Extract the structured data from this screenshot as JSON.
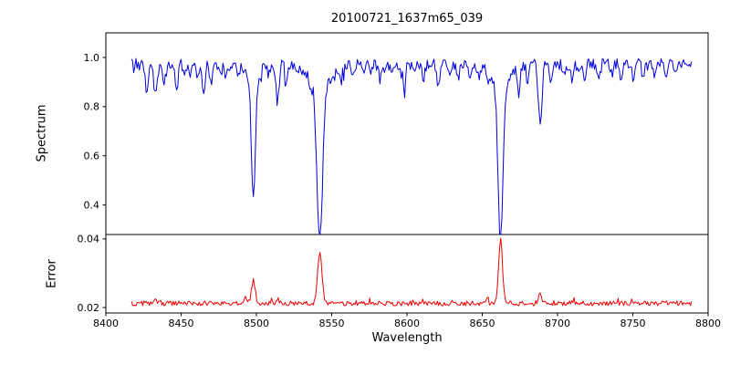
{
  "chart_data": {
    "type": "line",
    "title": "20100721_1637m65_039",
    "xlabel": "Wavelength",
    "grid": false,
    "legend": "none",
    "x_range": [
      8400,
      8800
    ],
    "x_ticks": [
      8400,
      8450,
      8500,
      8550,
      8600,
      8650,
      8700,
      8750,
      8800
    ],
    "data_x_range": [
      8417,
      8789
    ],
    "step": 0.75,
    "seed": 20100721,
    "panels": [
      {
        "name": "spectrum",
        "ylabel": "Spectrum",
        "ylim": [
          0.28,
          1.1
        ],
        "yticks": [
          0.4,
          0.6,
          0.8,
          1.0
        ],
        "ytick_labels": [
          "0.4",
          "0.6",
          "0.8",
          "1.0"
        ],
        "color": "#0000dd",
        "base": 0.972,
        "noise": 0.024,
        "spike_prob": 0.07,
        "spike_depth": 0.05,
        "spike_sign": -1,
        "feature_sign": -1,
        "features": [
          {
            "c": 8498.0,
            "d": 0.48,
            "w": 1.3
          },
          {
            "c": 8498.0,
            "d": 0.07,
            "w": 4.0
          },
          {
            "c": 8542.1,
            "d": 0.63,
            "w": 1.8
          },
          {
            "c": 8542.1,
            "d": 0.1,
            "w": 6.0
          },
          {
            "c": 8662.1,
            "d": 0.63,
            "w": 1.6
          },
          {
            "c": 8662.1,
            "d": 0.09,
            "w": 5.0
          },
          {
            "c": 8427.0,
            "d": 0.1,
            "w": 1.0
          },
          {
            "c": 8433.0,
            "d": 0.13,
            "w": 1.0
          },
          {
            "c": 8439.0,
            "d": 0.07,
            "w": 0.9
          },
          {
            "c": 8447.0,
            "d": 0.09,
            "w": 1.0
          },
          {
            "c": 8452.0,
            "d": 0.05,
            "w": 0.8
          },
          {
            "c": 8456.0,
            "d": 0.06,
            "w": 0.9
          },
          {
            "c": 8461.0,
            "d": 0.05,
            "w": 0.8
          },
          {
            "c": 8465.0,
            "d": 0.13,
            "w": 1.0
          },
          {
            "c": 8470.0,
            "d": 0.08,
            "w": 0.9
          },
          {
            "c": 8476.0,
            "d": 0.05,
            "w": 0.8
          },
          {
            "c": 8480.0,
            "d": 0.06,
            "w": 0.9
          },
          {
            "c": 8488.0,
            "d": 0.05,
            "w": 0.8
          },
          {
            "c": 8508.0,
            "d": 0.05,
            "w": 0.8
          },
          {
            "c": 8514.0,
            "d": 0.15,
            "w": 1.0
          },
          {
            "c": 8520.0,
            "d": 0.06,
            "w": 0.9
          },
          {
            "c": 8527.0,
            "d": 0.05,
            "w": 0.8
          },
          {
            "c": 8536.0,
            "d": 0.05,
            "w": 0.8
          },
          {
            "c": 8556.0,
            "d": 0.07,
            "w": 0.9
          },
          {
            "c": 8564.0,
            "d": 0.05,
            "w": 0.8
          },
          {
            "c": 8572.0,
            "d": 0.04,
            "w": 0.8
          },
          {
            "c": 8582.0,
            "d": 0.06,
            "w": 0.9
          },
          {
            "c": 8590.0,
            "d": 0.05,
            "w": 0.8
          },
          {
            "c": 8598.0,
            "d": 0.08,
            "w": 1.0
          },
          {
            "c": 8605.0,
            "d": 0.04,
            "w": 0.8
          },
          {
            "c": 8611.0,
            "d": 0.06,
            "w": 0.9
          },
          {
            "c": 8621.0,
            "d": 0.09,
            "w": 1.0
          },
          {
            "c": 8628.0,
            "d": 0.05,
            "w": 0.8
          },
          {
            "c": 8634.0,
            "d": 0.06,
            "w": 0.9
          },
          {
            "c": 8642.0,
            "d": 0.05,
            "w": 0.8
          },
          {
            "c": 8648.0,
            "d": 0.06,
            "w": 0.9
          },
          {
            "c": 8654.0,
            "d": 0.04,
            "w": 0.8
          },
          {
            "c": 8674.0,
            "d": 0.11,
            "w": 1.0
          },
          {
            "c": 8680.0,
            "d": 0.06,
            "w": 0.9
          },
          {
            "c": 8688.5,
            "d": 0.23,
            "w": 1.2
          },
          {
            "c": 8696.0,
            "d": 0.08,
            "w": 0.9
          },
          {
            "c": 8704.0,
            "d": 0.05,
            "w": 0.8
          },
          {
            "c": 8710.0,
            "d": 0.07,
            "w": 0.9
          },
          {
            "c": 8718.0,
            "d": 0.07,
            "w": 0.9
          },
          {
            "c": 8727.0,
            "d": 0.05,
            "w": 0.8
          },
          {
            "c": 8736.0,
            "d": 0.04,
            "w": 0.8
          },
          {
            "c": 8742.0,
            "d": 0.06,
            "w": 0.9
          },
          {
            "c": 8750.0,
            "d": 0.05,
            "w": 0.8
          },
          {
            "c": 8757.0,
            "d": 0.06,
            "w": 0.9
          },
          {
            "c": 8764.0,
            "d": 0.04,
            "w": 0.8
          },
          {
            "c": 8772.0,
            "d": 0.07,
            "w": 0.9
          },
          {
            "c": 8779.0,
            "d": 0.05,
            "w": 0.8
          }
        ]
      },
      {
        "name": "error",
        "ylabel": "Error",
        "ylim": [
          0.0184,
          0.0413
        ],
        "yticks": [
          0.02,
          0.04
        ],
        "ytick_labels": [
          "0.02",
          "0.04"
        ],
        "color": "#ee0000",
        "base": 0.0212,
        "noise": 0.0007,
        "spike_prob": 0.06,
        "spike_depth": 0.0014,
        "spike_sign": 1,
        "feature_sign": 1,
        "features": [
          {
            "c": 8493.0,
            "d": 0.0015,
            "w": 1.0
          },
          {
            "c": 8498.0,
            "d": 0.0068,
            "w": 1.2
          },
          {
            "c": 8542.1,
            "d": 0.0148,
            "w": 1.5
          },
          {
            "c": 8662.1,
            "d": 0.0186,
            "w": 1.3
          },
          {
            "c": 8688.5,
            "d": 0.0024,
            "w": 1.2
          },
          {
            "c": 8514.0,
            "d": 0.0012,
            "w": 1.0
          },
          {
            "c": 8433.0,
            "d": 0.001,
            "w": 1.0
          }
        ]
      }
    ]
  }
}
